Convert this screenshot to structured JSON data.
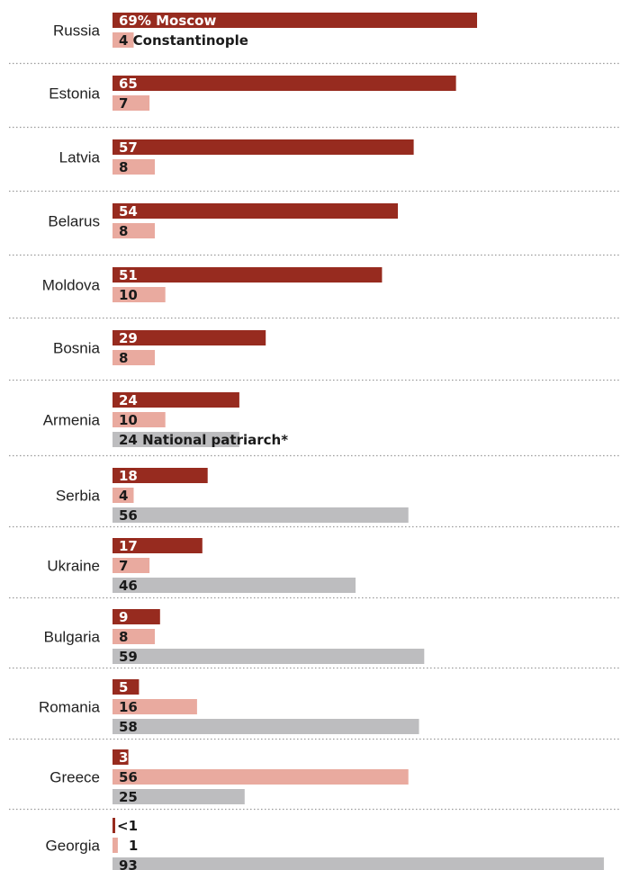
{
  "colors": {
    "moscow": "#972b1f",
    "constantinople": "#e9aa9f",
    "national": "#bdbdbf",
    "label_on_dark": "#ffffff",
    "label_on_light": "#1a1a1a"
  },
  "chart_data": {
    "type": "bar",
    "orientation": "horizontal",
    "categories": [
      "Russia",
      "Estonia",
      "Latvia",
      "Belarus",
      "Moldova",
      "Bosnia",
      "Armenia",
      "Serbia",
      "Ukraine",
      "Bulgaria",
      "Romania",
      "Greece",
      "Georgia"
    ],
    "series": [
      {
        "key": "moscow",
        "name": "Moscow",
        "values": [
          69,
          65,
          57,
          54,
          51,
          29,
          24,
          18,
          17,
          9,
          5,
          3,
          0.5
        ],
        "labels": [
          "69% Moscow",
          "65",
          "57",
          "54",
          "51",
          "29",
          "24",
          "18",
          "17",
          "9",
          "5",
          "3",
          "<1"
        ]
      },
      {
        "key": "constantinople",
        "name": "Constantinople",
        "values": [
          4,
          7,
          8,
          8,
          10,
          8,
          10,
          4,
          7,
          8,
          16,
          56,
          1
        ],
        "labels": [
          "4 Constantinople",
          "7",
          "8",
          "8",
          "10",
          "8",
          "10",
          "4",
          "7",
          "8",
          "16",
          "56",
          "1"
        ]
      },
      {
        "key": "national",
        "name": "National patriarch*",
        "values": [
          null,
          null,
          null,
          null,
          null,
          null,
          24,
          56,
          46,
          59,
          58,
          25,
          93
        ],
        "labels": [
          null,
          null,
          null,
          null,
          null,
          null,
          "24 National patriarch*",
          "56",
          "46",
          "59",
          "58",
          "25",
          "93"
        ]
      }
    ],
    "xlim": [
      0,
      93
    ],
    "grid": false,
    "legend": "inline"
  }
}
